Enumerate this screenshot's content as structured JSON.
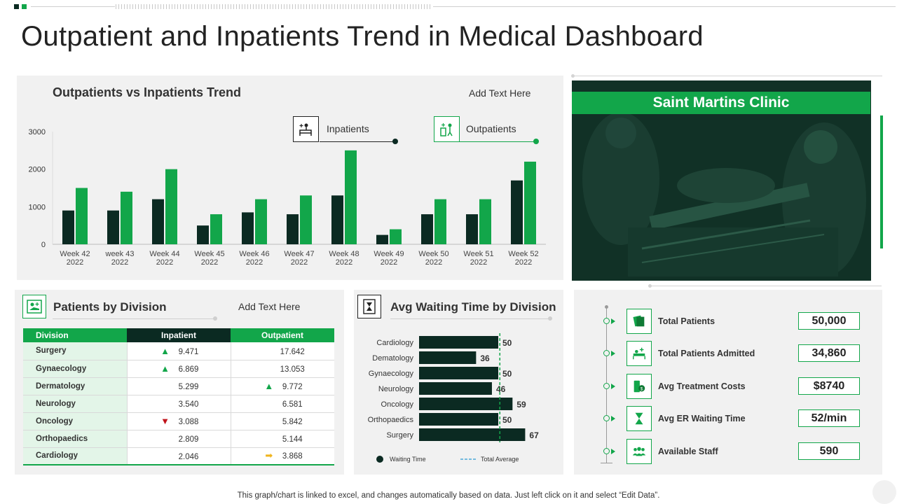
{
  "page": {
    "title": "Outpatient and Inpatients Trend in Medical Dashboard",
    "footer_note": "This graph/chart is linked to excel,  and changes automatically based on data. Just left click on it and select “Edit Data”."
  },
  "colors": {
    "dark": "#0b2a22",
    "green": "#12a64a",
    "panel": "#f1f1f1"
  },
  "trend_panel": {
    "title": "Outpatients vs Inpatients Trend",
    "add_text": "Add Text Here",
    "legend": [
      {
        "label": "Inpatients",
        "icon": "inpatient-icon"
      },
      {
        "label": "Outpatients",
        "icon": "outpatient-icon"
      }
    ]
  },
  "clinic": {
    "name": "Saint Martins Clinic"
  },
  "division_panel": {
    "title": "Patients by Division",
    "add_text": "Add Text Here",
    "headers": [
      "Division",
      "Inpatient",
      "Outpatient"
    ],
    "rows": [
      {
        "division": "Surgery",
        "inpatient": "9.471",
        "outpatient": "17.642",
        "in_arrow": "up",
        "out_arrow": ""
      },
      {
        "division": "Gynaecology",
        "inpatient": "6.869",
        "outpatient": "13.053",
        "in_arrow": "up",
        "out_arrow": ""
      },
      {
        "division": "Dermatology",
        "inpatient": "5.299",
        "outpatient": "9.772",
        "in_arrow": "",
        "out_arrow": "up"
      },
      {
        "division": "Neurology",
        "inpatient": "3.540",
        "outpatient": "6.581",
        "in_arrow": "",
        "out_arrow": ""
      },
      {
        "division": "Oncology",
        "inpatient": "3.088",
        "outpatient": "5.842",
        "in_arrow": "down",
        "out_arrow": ""
      },
      {
        "division": "Orthopaedics",
        "inpatient": "2.809",
        "outpatient": "5.144",
        "in_arrow": "",
        "out_arrow": ""
      },
      {
        "division": "Cardiology",
        "inpatient": "2.046",
        "outpatient": "3.868",
        "in_arrow": "",
        "out_arrow": "right"
      }
    ]
  },
  "wait_panel": {
    "title": "Avg Waiting  Time by Division",
    "legend_waiting": "Waiting Time",
    "legend_average": "Total Average"
  },
  "kpis": [
    {
      "label": "Total Patients",
      "value": "50,000",
      "icon": "patients-icon"
    },
    {
      "label": "Total Patients Admitted",
      "value": "34,860",
      "icon": "admitted-icon"
    },
    {
      "label": "Avg Treatment Costs",
      "value": "$8740",
      "icon": "costs-icon"
    },
    {
      "label": "Avg  ER  Waiting Time",
      "value": "52/min",
      "icon": "hourglass-icon"
    },
    {
      "label": "Available  Staff",
      "value": "590",
      "icon": "staff-icon"
    }
  ],
  "chart_data": [
    {
      "type": "bar",
      "title": "Outpatients vs Inpatients Trend",
      "categories": [
        "Week 42\n2022",
        "week 43\n2022",
        "Week 44\n2022",
        "Week 45\n2022",
        "Week 46\n2022",
        "Week 47\n2022",
        "Week 48\n2022",
        "Week 49\n2022",
        "Week 50\n2022",
        "Week 51\n2022",
        "Week 52\n2022"
      ],
      "series": [
        {
          "name": "Inpatients",
          "values": [
            900,
            900,
            1200,
            500,
            850,
            800,
            1300,
            250,
            800,
            800,
            1700
          ]
        },
        {
          "name": "Outpatients",
          "values": [
            1500,
            1400,
            2000,
            800,
            1200,
            1300,
            2500,
            400,
            1200,
            1200,
            2200
          ]
        }
      ],
      "yticks": [
        "0",
        "1000",
        "2000",
        "3000"
      ],
      "ylim": [
        0,
        3000
      ],
      "xlabel": "",
      "ylabel": ""
    },
    {
      "type": "bar",
      "orientation": "horizontal",
      "title": "Avg Waiting  Time by Division",
      "categories": [
        "Cardiology",
        "Dematology",
        "Gynaecology",
        "Neurology",
        "Oncology",
        "Orthopaedics",
        "Surgery"
      ],
      "values": [
        50,
        36,
        50,
        46,
        59,
        50,
        67
      ],
      "labels": [
        "50",
        "36",
        "50",
        "46",
        "59",
        "50",
        "67"
      ],
      "average": 51,
      "xlim": [
        0,
        67
      ],
      "series_name": "Waiting Time",
      "average_name": "Total Average"
    }
  ]
}
